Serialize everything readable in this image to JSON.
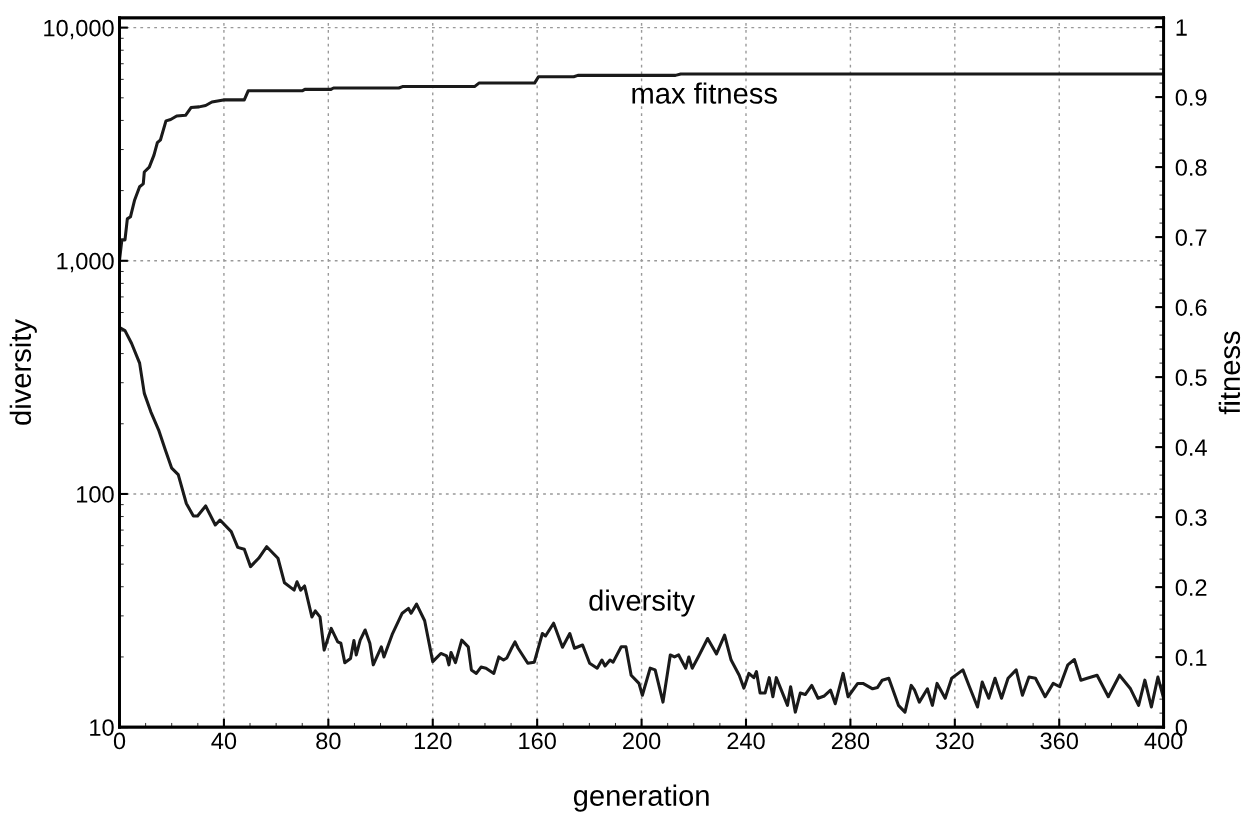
{
  "chart_data": {
    "type": "line",
    "xlabel": "generation",
    "ylabel": "diversity",
    "y2label": "fitness",
    "log": "y",
    "xlim": [
      0,
      400
    ],
    "xticks": [
      0,
      40,
      80,
      120,
      160,
      200,
      240,
      280,
      320,
      360,
      400
    ],
    "ylim": [
      10,
      11000
    ],
    "yticks": [
      {
        "value": 10,
        "label": "10"
      },
      {
        "value": 100,
        "label": "100"
      },
      {
        "value": 1000,
        "label": "1,000"
      },
      {
        "value": 10000,
        "label": "10,000"
      }
    ],
    "y2lim": [
      0,
      1.013
    ],
    "y2ticks": [
      0,
      0.1,
      0.2,
      0.3,
      0.4,
      0.5,
      0.6,
      0.7,
      0.8,
      0.9,
      1
    ],
    "grid": true,
    "line_style": "solid",
    "marker": "none",
    "annotations": [
      "max fitness",
      "diversity"
    ],
    "series": [
      {
        "color": "#1a1a1a",
        "axis": "y2",
        "x": [
          0,
          0.9,
          2.1,
          3,
          4.2,
          5.8,
          7.7,
          9.1,
          9.5,
          11.4,
          13.2,
          14.5,
          15.7,
          17.8,
          19.6,
          21.9,
          25.3,
          27.4,
          30.5,
          33,
          35.4,
          39.8,
          47.8,
          49.3,
          70,
          71,
          81,
          82,
          107,
          108.4,
          136,
          137.7,
          159,
          160.5,
          174,
          175.6,
          213,
          215,
          400
        ],
        "values": [
          0.667,
          0.696,
          0.696,
          0.726,
          0.729,
          0.753,
          0.772,
          0.776,
          0.793,
          0.8,
          0.817,
          0.835,
          0.839,
          0.866,
          0.868,
          0.873,
          0.874,
          0.885,
          0.886,
          0.888,
          0.893,
          0.896,
          0.896,
          0.909,
          0.909,
          0.911,
          0.911,
          0.913,
          0.913,
          0.915,
          0.915,
          0.92,
          0.92,
          0.929,
          0.929,
          0.931,
          0.931,
          0.933,
          0.933
        ]
      },
      {
        "color": "#1a1a1a",
        "axis": "y",
        "x": [
          0.4,
          2.1,
          4.6,
          7.7,
          9.5,
          12,
          15,
          17.5,
          20,
          22.5,
          25.6,
          28.3,
          29.9,
          33,
          36.7,
          38.5,
          42.8,
          45.3,
          47.8,
          50.2,
          53.3,
          56.4,
          60.7,
          63.2,
          66.9,
          68,
          69.4,
          70.9,
          73.7,
          75,
          76.8,
          78.4,
          81.1,
          83.6,
          84.8,
          86.3,
          88.5,
          89.8,
          90.7,
          92.2,
          94.1,
          95.9,
          97.2,
          100.3,
          101.3,
          104.6,
          108.3,
          110.7,
          111.7,
          113.8,
          116.9,
          120,
          123.1,
          125.3,
          126.2,
          127,
          128.7,
          131.1,
          133.6,
          134.8,
          136.7,
          138.5,
          140.4,
          143.4,
          145.3,
          147.1,
          148.4,
          150.2,
          151.5,
          152.7,
          156.4,
          158.9,
          162,
          163.2,
          166.3,
          169.7,
          172.5,
          174.3,
          177.4,
          180.1,
          183,
          184.8,
          186,
          187.9,
          189.1,
          192.2,
          194,
          196,
          199,
          200.3,
          203.3,
          205.2,
          208.2,
          211,
          212.6,
          214.2,
          216.9,
          218.1,
          219.4,
          221.9,
          225.3,
          228.7,
          231.8,
          234.3,
          237.4,
          239.2,
          241.1,
          243,
          244,
          245.4,
          247.3,
          248.9,
          250.3,
          251.6,
          254,
          255.9,
          257.1,
          258.9,
          260.8,
          262.7,
          265.2,
          267.6,
          270,
          272.4,
          274.2,
          277.2,
          279.1,
          282.8,
          284.8,
          288.5,
          290.4,
          292.2,
          294.7,
          298.4,
          300.9,
          303.3,
          304.6,
          306.4,
          309.5,
          311.4,
          313.2,
          316.3,
          318.8,
          323.1,
          325.6,
          328.7,
          330.5,
          333,
          335.4,
          337.9,
          340.4,
          343.5,
          345.9,
          348.4,
          350.9,
          354.6,
          357.7,
          360.2,
          363.3,
          365.8,
          368.3,
          370.7,
          374.5,
          378.8,
          383.1,
          387.3,
          390.4,
          392.8,
          395.3,
          397.8,
          400
        ],
        "values": [
          514,
          502,
          443,
          364,
          270,
          225,
          188,
          155,
          129,
          121,
          91,
          80.5,
          80.5,
          88.8,
          73.6,
          77.3,
          68.9,
          59,
          57.9,
          48.8,
          53,
          59.4,
          53,
          41.6,
          38.7,
          42,
          38.7,
          40.3,
          29.7,
          31.5,
          29.7,
          21.4,
          26.5,
          23.2,
          22.9,
          18.9,
          19.7,
          23.5,
          20.4,
          23.6,
          26.1,
          22.9,
          18.5,
          22.1,
          20,
          25.2,
          30.8,
          32.3,
          30.8,
          33.7,
          28.6,
          19.1,
          20.7,
          20.2,
          18.5,
          20.9,
          18.9,
          23.6,
          22.1,
          17.6,
          17,
          18.1,
          17.9,
          17,
          20,
          19.4,
          19.8,
          21.8,
          23.2,
          21.8,
          18.8,
          19,
          25.2,
          24.6,
          27.9,
          22,
          25.2,
          21.8,
          22.5,
          18.8,
          17.9,
          19.4,
          18.3,
          19.4,
          19,
          22.1,
          22.1,
          16.7,
          15.4,
          13.7,
          17.9,
          17.6,
          12.8,
          20.4,
          20,
          20.4,
          17.9,
          20,
          17.9,
          20.2,
          24,
          20.6,
          24.8,
          19.4,
          16.7,
          14.7,
          17,
          16.3,
          17.3,
          14,
          14,
          16.3,
          13.5,
          16.3,
          14,
          12.4,
          14.9,
          11.6,
          14,
          13.8,
          15.1,
          13.3,
          13.6,
          14.4,
          12.6,
          17,
          13.5,
          15.4,
          15.4,
          14.6,
          14.8,
          15.9,
          16.2,
          12.4,
          11.6,
          15.1,
          14.4,
          12.8,
          14.6,
          12.4,
          15.4,
          13.3,
          16.2,
          17.6,
          14.9,
          12.2,
          15.6,
          13.3,
          16.2,
          13.3,
          16.2,
          17.6,
          13.7,
          16.4,
          16.2,
          13.5,
          15.4,
          14.9,
          18.5,
          19.5,
          15.9,
          16.2,
          16.7,
          13.5,
          16.7,
          14.6,
          12.4,
          15.9,
          12.2,
          16.4,
          13.3
        ]
      }
    ]
  }
}
